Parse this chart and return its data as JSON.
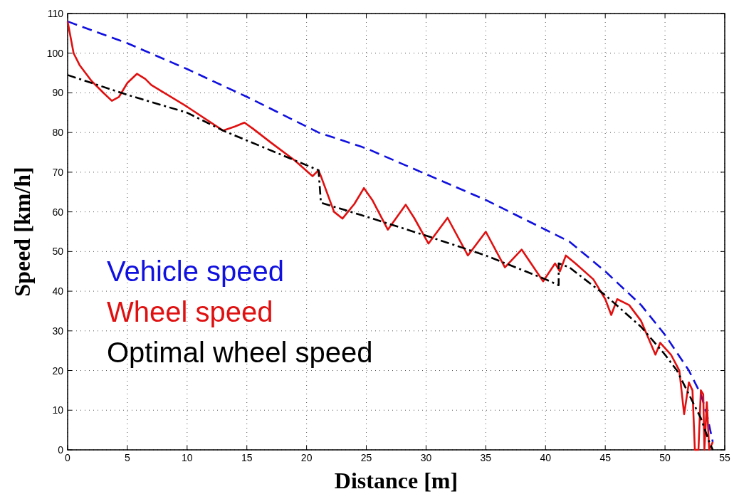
{
  "chart_data": {
    "type": "line",
    "xlabel": "Distance [m]",
    "ylabel": "Speed [km/h]",
    "xlim": [
      0,
      55
    ],
    "ylim": [
      0,
      110
    ],
    "xticks": [
      0,
      5,
      10,
      15,
      20,
      25,
      30,
      35,
      40,
      45,
      50,
      55
    ],
    "yticks": [
      0,
      10,
      20,
      30,
      40,
      50,
      60,
      70,
      80,
      90,
      100,
      110
    ],
    "grid": true,
    "legend": "left",
    "series": [
      {
        "name": "Vehicle speed",
        "color": "#1010e0",
        "line_style": "dashed",
        "x": [
          0,
          5,
          10,
          15,
          21,
          25,
          30,
          35,
          40,
          42,
          45,
          48,
          50,
          52,
          53,
          53.5,
          54
        ],
        "values": [
          108,
          102.5,
          96,
          89,
          80,
          76,
          69.5,
          63,
          55.5,
          52.5,
          45,
          36.5,
          29,
          20,
          14,
          9,
          2
        ]
      },
      {
        "name": "Wheel speed",
        "color": "#e01010",
        "line_style": "solid",
        "x": [
          0,
          0.5,
          1,
          2,
          3,
          3.7,
          4.3,
          5,
          5.8,
          6.5,
          7,
          10,
          13,
          14,
          14.8,
          15.5,
          17,
          19,
          20.5,
          21,
          21.2,
          22.3,
          23,
          24,
          24.8,
          25.5,
          26.8,
          28.3,
          29,
          30.2,
          31.8,
          33.5,
          35,
          36.6,
          38,
          39.8,
          40.8,
          41.2,
          41.7,
          42.5,
          44,
          45,
          45.5,
          46,
          47,
          48,
          49.2,
          49.6,
          50.5,
          51.2,
          51.6,
          52,
          52.3,
          52.5,
          52.8,
          53,
          53.2,
          53.3,
          53.5,
          53.7,
          54
        ],
        "values": [
          108,
          100,
          97,
          93,
          90,
          88,
          89,
          92.5,
          94.8,
          93.5,
          92,
          86.5,
          80.5,
          81.5,
          82.5,
          81,
          77.5,
          73,
          69,
          70.5,
          69,
          60,
          58.3,
          62,
          66,
          63,
          55.5,
          61.8,
          58.5,
          52,
          58.5,
          49,
          55,
          46,
          50.5,
          42.5,
          47,
          45,
          49,
          47,
          43,
          38,
          34,
          38,
          36.5,
          32.5,
          24,
          27,
          24,
          20,
          9,
          17,
          15,
          0,
          0,
          15,
          14,
          0,
          12,
          0,
          2
        ]
      },
      {
        "name": "Optimal wheel speed",
        "color": "#000000",
        "line_style": "dashdot",
        "x": [
          0,
          5,
          10,
          13,
          21,
          21.2,
          25,
          30,
          35,
          40,
          41.1,
          41.1,
          42,
          45,
          48,
          50,
          51,
          52,
          53,
          53.7,
          54
        ],
        "values": [
          94.5,
          89.5,
          85,
          80.5,
          70.5,
          62.3,
          58.8,
          54,
          49,
          43,
          41.5,
          47,
          46,
          39,
          31,
          24,
          20,
          14,
          8,
          2,
          0
        ]
      }
    ]
  }
}
